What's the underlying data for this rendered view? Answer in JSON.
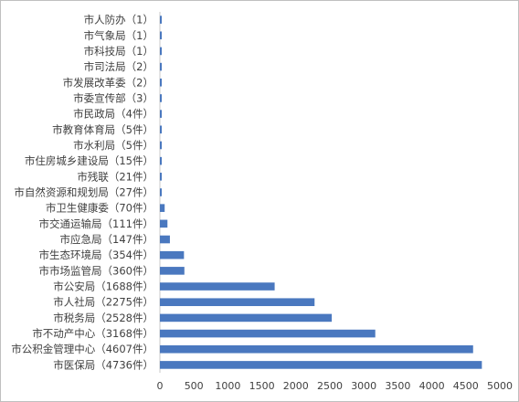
{
  "chart_data": {
    "type": "bar",
    "orientation": "horizontal",
    "title": "",
    "xlabel": "",
    "ylabel": "",
    "xlim": [
      0,
      5000
    ],
    "x_ticks": [
      "0",
      "500",
      "1000",
      "1500",
      "2000",
      "2500",
      "3000",
      "3500",
      "4000",
      "4500",
      "5000"
    ],
    "grid": false,
    "legend": "none",
    "bar_color": "#4a78bf",
    "categories": [
      "市人防办（1）",
      "市气象局（1）",
      "市科技局（1）",
      "市司法局（2）",
      "市发展改革委（2）",
      "市委宣传部（3）",
      "市民政局（4件）",
      "市教育体育局（5件）",
      "市水利局（5件）",
      "市住房城乡建设局（15件）",
      "市残联（21件）",
      "市自然资源和规划局（27件）",
      "市卫生健康委（70件）",
      "市交通运输局（111件）",
      "市应急局（147件）",
      "市生态环境局（354件）",
      "市市场监管局（360件）",
      "市公安局（1688件）",
      "市人社局（2275件）",
      "市税务局（2528件）",
      "市不动产中心（3168件）",
      "市公积金管理中心（4607件）",
      "市医保局（4736件）"
    ],
    "values": [
      1,
      1,
      1,
      2,
      2,
      3,
      4,
      5,
      5,
      15,
      21,
      27,
      70,
      111,
      147,
      354,
      360,
      1688,
      2275,
      2528,
      3168,
      4607,
      4736
    ]
  }
}
